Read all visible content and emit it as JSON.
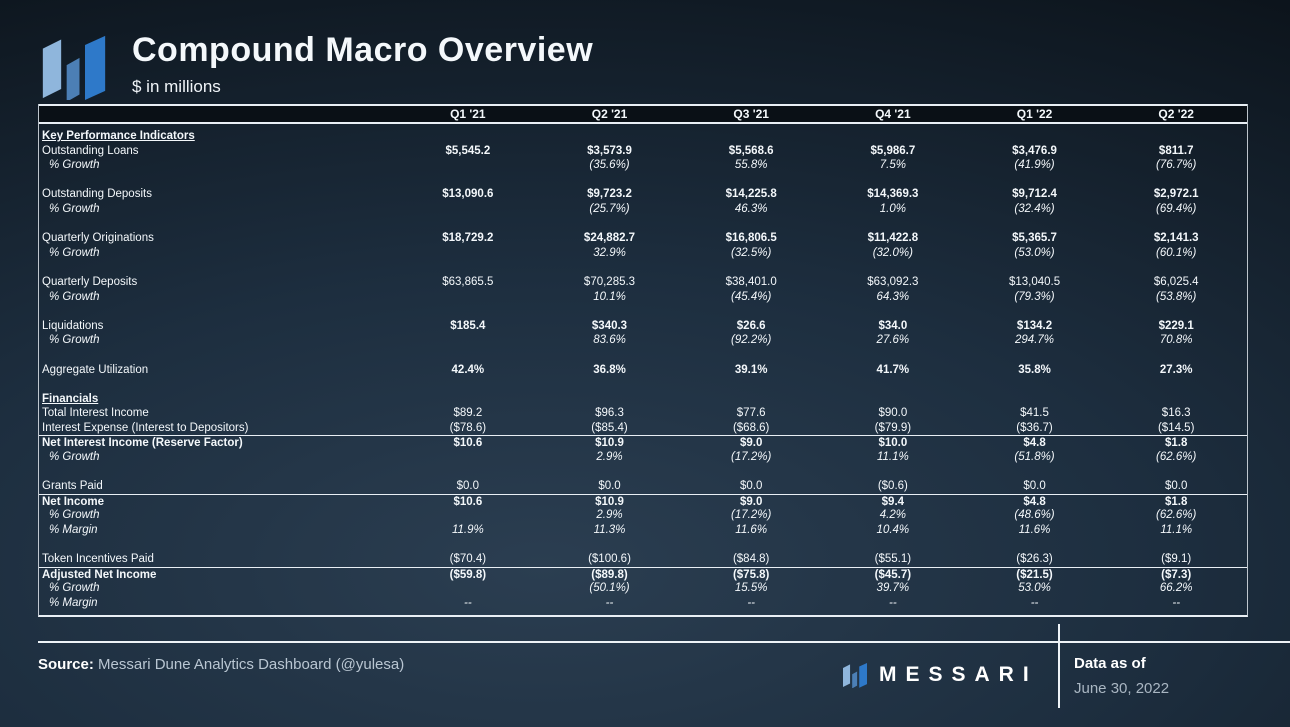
{
  "header": {
    "title": "Compound Macro Overview",
    "subtitle": "$ in millions"
  },
  "colors": {
    "logo_blue_light": "#8fb6dc",
    "logo_blue_mid": "#4c7fb5",
    "logo_blue_bright": "#2e79c9",
    "rule_white": "#e9eff5",
    "text_secondary": "#b9c6d2"
  },
  "table": {
    "columns": [
      "Q1 '21",
      "Q2 '21",
      "Q3 '21",
      "Q4 '21",
      "Q1 '22",
      "Q2 '22"
    ],
    "rows": [
      {
        "type": "section",
        "label": "Key Performance Indicators"
      },
      {
        "type": "data",
        "bold": true,
        "label": "Outstanding Loans",
        "values": [
          "$5,545.2",
          "$3,573.9",
          "$5,568.6",
          "$5,986.7",
          "$3,476.9",
          "$811.7"
        ]
      },
      {
        "type": "growth",
        "label": "% Growth",
        "values": [
          "",
          "(35.6%)",
          "55.8%",
          "7.5%",
          "(41.9%)",
          "(76.7%)"
        ]
      },
      {
        "type": "spacer"
      },
      {
        "type": "data",
        "bold": true,
        "label": "Outstanding Deposits",
        "values": [
          "$13,090.6",
          "$9,723.2",
          "$14,225.8",
          "$14,369.3",
          "$9,712.4",
          "$2,972.1"
        ]
      },
      {
        "type": "growth",
        "label": "% Growth",
        "values": [
          "",
          "(25.7%)",
          "46.3%",
          "1.0%",
          "(32.4%)",
          "(69.4%)"
        ]
      },
      {
        "type": "spacer"
      },
      {
        "type": "data",
        "bold": true,
        "label": "Quarterly Originations",
        "values": [
          "$18,729.2",
          "$24,882.7",
          "$16,806.5",
          "$11,422.8",
          "$5,365.7",
          "$2,141.3"
        ]
      },
      {
        "type": "growth",
        "label": "% Growth",
        "values": [
          "",
          "32.9%",
          "(32.5%)",
          "(32.0%)",
          "(53.0%)",
          "(60.1%)"
        ]
      },
      {
        "type": "spacer"
      },
      {
        "type": "data",
        "label": "Quarterly Deposits",
        "values": [
          "$63,865.5",
          "$70,285.3",
          "$38,401.0",
          "$63,092.3",
          "$13,040.5",
          "$6,025.4"
        ]
      },
      {
        "type": "growth",
        "label": "% Growth",
        "values": [
          "",
          "10.1%",
          "(45.4%)",
          "64.3%",
          "(79.3%)",
          "(53.8%)"
        ]
      },
      {
        "type": "spacer"
      },
      {
        "type": "data",
        "bold": true,
        "label": "Liquidations",
        "values": [
          "$185.4",
          "$340.3",
          "$26.6",
          "$34.0",
          "$134.2",
          "$229.1"
        ]
      },
      {
        "type": "growth",
        "label": "% Growth",
        "values": [
          "",
          "83.6%",
          "(92.2%)",
          "27.6%",
          "294.7%",
          "70.8%"
        ]
      },
      {
        "type": "spacer"
      },
      {
        "type": "data",
        "bold": true,
        "label": "Aggregate Utilization",
        "values": [
          "42.4%",
          "36.8%",
          "39.1%",
          "41.7%",
          "35.8%",
          "27.3%"
        ]
      },
      {
        "type": "spacer"
      },
      {
        "type": "section",
        "label": "Financials"
      },
      {
        "type": "data",
        "label": "Total Interest Income",
        "values": [
          "$89.2",
          "$96.3",
          "$77.6",
          "$90.0",
          "$41.5",
          "$16.3"
        ]
      },
      {
        "type": "data",
        "label": "Interest Expense (Interest to Depositors)",
        "values": [
          "($78.6)",
          "($85.4)",
          "($68.6)",
          "($79.9)",
          "($36.7)",
          "($14.5)"
        ]
      },
      {
        "type": "data",
        "bold": true,
        "rule": true,
        "label": "Net Interest Income (Reserve Factor)",
        "values": [
          "$10.6",
          "$10.9",
          "$9.0",
          "$10.0",
          "$4.8",
          "$1.8"
        ]
      },
      {
        "type": "growth",
        "label": "% Growth",
        "values": [
          "",
          "2.9%",
          "(17.2%)",
          "11.1%",
          "(51.8%)",
          "(62.6%)"
        ]
      },
      {
        "type": "spacer"
      },
      {
        "type": "data",
        "label": "Grants Paid",
        "values": [
          "$0.0",
          "$0.0",
          "$0.0",
          "($0.6)",
          "$0.0",
          "$0.0"
        ]
      },
      {
        "type": "data",
        "bold": true,
        "rule": true,
        "label": "Net Income",
        "values": [
          "$10.6",
          "$10.9",
          "$9.0",
          "$9.4",
          "$4.8",
          "$1.8"
        ]
      },
      {
        "type": "growth",
        "label": "% Growth",
        "values": [
          "",
          "2.9%",
          "(17.2%)",
          "4.2%",
          "(48.6%)",
          "(62.6%)"
        ]
      },
      {
        "type": "growth",
        "label": "% Margin",
        "values": [
          "11.9%",
          "11.3%",
          "11.6%",
          "10.4%",
          "11.6%",
          "11.1%"
        ]
      },
      {
        "type": "spacer"
      },
      {
        "type": "data",
        "label": "Token Incentives Paid",
        "values": [
          "($70.4)",
          "($100.6)",
          "($84.8)",
          "($55.1)",
          "($26.3)",
          "($9.1)"
        ]
      },
      {
        "type": "data",
        "bold": true,
        "rule": true,
        "label": "Adjusted Net Income",
        "values": [
          "($59.8)",
          "($89.8)",
          "($75.8)",
          "($45.7)",
          "($21.5)",
          "($7.3)"
        ]
      },
      {
        "type": "growth",
        "label": "% Growth",
        "values": [
          "",
          "(50.1%)",
          "15.5%",
          "39.7%",
          "53.0%",
          "66.2%"
        ]
      },
      {
        "type": "growth",
        "label": "% Margin",
        "values": [
          "--",
          "--",
          "--",
          "--",
          "--",
          "--"
        ]
      }
    ]
  },
  "footer": {
    "source_label": "Source:",
    "source_text": " Messari Dune Analytics Dashboard (@yulesa)",
    "brand": "MESSARI",
    "data_as_of_label": "Data as of",
    "data_as_of_value": "June 30, 2022"
  }
}
